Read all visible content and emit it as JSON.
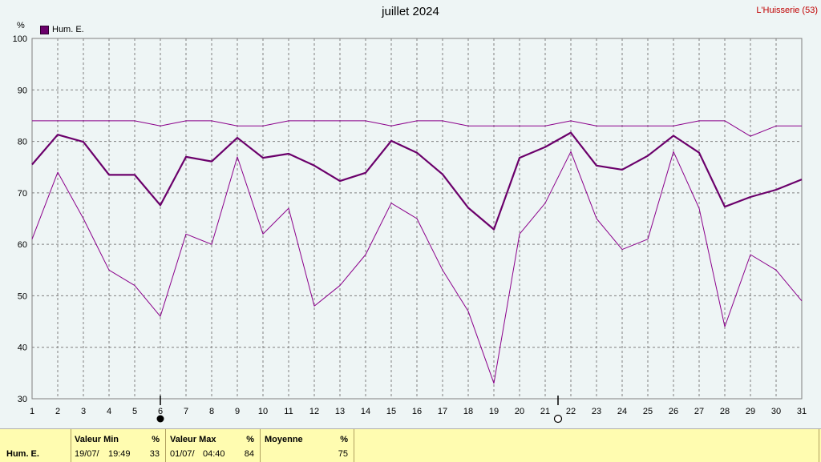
{
  "title": "juillet 2024",
  "location": "L'Huisserie (53)",
  "unit": "%",
  "legend": "Hum. E.",
  "chart_data": {
    "type": "line",
    "title": "juillet 2024",
    "ylabel": "%",
    "ylim": [
      30,
      100
    ],
    "yticks": [
      30,
      40,
      50,
      60,
      70,
      80,
      90,
      100
    ],
    "x": [
      1,
      2,
      3,
      4,
      5,
      6,
      7,
      8,
      9,
      10,
      11,
      12,
      13,
      14,
      15,
      16,
      17,
      18,
      19,
      20,
      21,
      22,
      23,
      24,
      25,
      26,
      27,
      28,
      29,
      30,
      31
    ],
    "grid": true,
    "legend_position": "top-left",
    "series": [
      {
        "name": "Hum. E.",
        "role": "max",
        "color": "#8b008b",
        "values": [
          84,
          84,
          84,
          84,
          84,
          83,
          84,
          84,
          83,
          83,
          84,
          84,
          84,
          84,
          83,
          84,
          84,
          83,
          83,
          83,
          83,
          84,
          83,
          83,
          83,
          83,
          84,
          84,
          81,
          83,
          83
        ]
      },
      {
        "name": "Hum. E.",
        "role": "mean",
        "color": "#6b006b",
        "values": [
          75.5,
          81.3,
          79.9,
          73.5,
          73.5,
          67.6,
          77,
          76.1,
          80.7,
          76.8,
          77.6,
          75.3,
          72.3,
          73.9,
          80.1,
          77.8,
          73.6,
          67.1,
          62.9,
          76.8,
          78.9,
          81.7,
          75.3,
          74.5,
          77.2,
          81.1,
          77.8,
          67.3,
          69.2,
          70.6,
          72.6
        ]
      },
      {
        "name": "Hum. E.",
        "role": "min",
        "color": "#8b008b",
        "values": [
          61,
          74,
          65,
          55,
          52,
          46,
          62,
          60,
          77,
          62,
          67,
          48,
          52,
          58,
          68,
          65,
          55,
          47,
          33,
          62,
          68,
          78,
          65,
          59,
          61,
          78,
          67,
          44,
          58,
          55,
          49
        ]
      }
    ],
    "markers": [
      {
        "x": 6,
        "symbol": "full-moon"
      },
      {
        "x": 21.5,
        "symbol": "new-moon"
      }
    ]
  },
  "table": {
    "row_label": "Hum. E.",
    "min": {
      "header": "Valeur Min",
      "unit": "%",
      "date": "19/07/",
      "time": "19:49",
      "value": "33"
    },
    "max": {
      "header": "Valeur Max",
      "unit": "%",
      "date": "01/07/",
      "time": "04:40",
      "value": "84"
    },
    "avg": {
      "header": "Moyenne",
      "unit": "%",
      "value": "75"
    }
  }
}
